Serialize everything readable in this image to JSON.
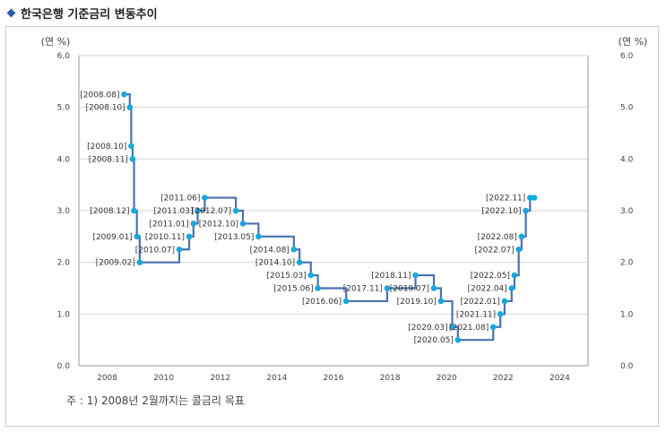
{
  "header": {
    "title": "한국은행 기준금리 변동추이"
  },
  "note": "주 : 1) 2008년 2월까지는 콜금리 목표",
  "colors": {
    "line": "#4a72b0",
    "point": "#1aa7dc",
    "grid": "#d6d6d6",
    "title_bullet": "#2f5aa8"
  },
  "chart_data": {
    "type": "line",
    "step": true,
    "ylabel_left": "(연 %)",
    "ylabel_right": "(연 %)",
    "xlim": [
      2007,
      2025
    ],
    "ylim": [
      0,
      6
    ],
    "x_ticks": [
      2008,
      2010,
      2012,
      2014,
      2016,
      2018,
      2020,
      2022,
      2024
    ],
    "y_ticks": [
      "0.0",
      "1.0",
      "2.0",
      "3.0",
      "4.0",
      "5.0",
      "6.0"
    ],
    "grid": "horizontal",
    "points": [
      {
        "label": "[2008.08]",
        "x": 2008.6,
        "y": 5.25
      },
      {
        "label": "[2008.10]",
        "x": 2008.8,
        "y": 5.0
      },
      {
        "label": "[2008.10]",
        "x": 2008.85,
        "y": 4.25
      },
      {
        "label": "[2008.11]",
        "x": 2008.9,
        "y": 4.0
      },
      {
        "label": "[2008.12]",
        "x": 2008.95,
        "y": 3.0
      },
      {
        "label": "[2009.01]",
        "x": 2009.05,
        "y": 2.5
      },
      {
        "label": "[2009.02]",
        "x": 2009.15,
        "y": 2.0
      },
      {
        "label": "[2010.07]",
        "x": 2010.55,
        "y": 2.25
      },
      {
        "label": "[2010.11]",
        "x": 2010.9,
        "y": 2.5
      },
      {
        "label": "[2011.01]",
        "x": 2011.05,
        "y": 2.75
      },
      {
        "label": "[2011.03]",
        "x": 2011.2,
        "y": 3.0
      },
      {
        "label": "[2011.06]",
        "x": 2011.45,
        "y": 3.25
      },
      {
        "label": "[2012.07]",
        "x": 2012.55,
        "y": 3.0
      },
      {
        "label": "[2012.10]",
        "x": 2012.8,
        "y": 2.75
      },
      {
        "label": "[2013.05]",
        "x": 2013.35,
        "y": 2.5
      },
      {
        "label": "[2014.08]",
        "x": 2014.6,
        "y": 2.25
      },
      {
        "label": "[2014.10]",
        "x": 2014.8,
        "y": 2.0
      },
      {
        "label": "[2015.03]",
        "x": 2015.2,
        "y": 1.75
      },
      {
        "label": "[2015.06]",
        "x": 2015.45,
        "y": 1.5
      },
      {
        "label": "[2016.06]",
        "x": 2016.45,
        "y": 1.25
      },
      {
        "label": "[2017.11]",
        "x": 2017.9,
        "y": 1.5
      },
      {
        "label": "[2018.11]",
        "x": 2018.9,
        "y": 1.75
      },
      {
        "label": "[2019.07]",
        "x": 2019.55,
        "y": 1.5
      },
      {
        "label": "[2019.10]",
        "x": 2019.8,
        "y": 1.25
      },
      {
        "label": "[2020.03]",
        "x": 2020.2,
        "y": 0.75
      },
      {
        "label": "[2020.05]",
        "x": 2020.4,
        "y": 0.5
      },
      {
        "label": "[2021.08]",
        "x": 2021.65,
        "y": 0.75
      },
      {
        "label": "[2021.11]",
        "x": 2021.9,
        "y": 1.0
      },
      {
        "label": "[2022.01]",
        "x": 2022.05,
        "y": 1.25
      },
      {
        "label": "[2022.04]",
        "x": 2022.3,
        "y": 1.5
      },
      {
        "label": "[2022.05]",
        "x": 2022.4,
        "y": 1.75
      },
      {
        "label": "[2022.07]",
        "x": 2022.55,
        "y": 2.25
      },
      {
        "label": "[2022.08]",
        "x": 2022.65,
        "y": 2.5
      },
      {
        "label": "[2022.10]",
        "x": 2022.8,
        "y": 3.0
      },
      {
        "label": "[2022.11]",
        "x": 2022.95,
        "y": 3.25
      }
    ],
    "end_x": 2023.1
  }
}
